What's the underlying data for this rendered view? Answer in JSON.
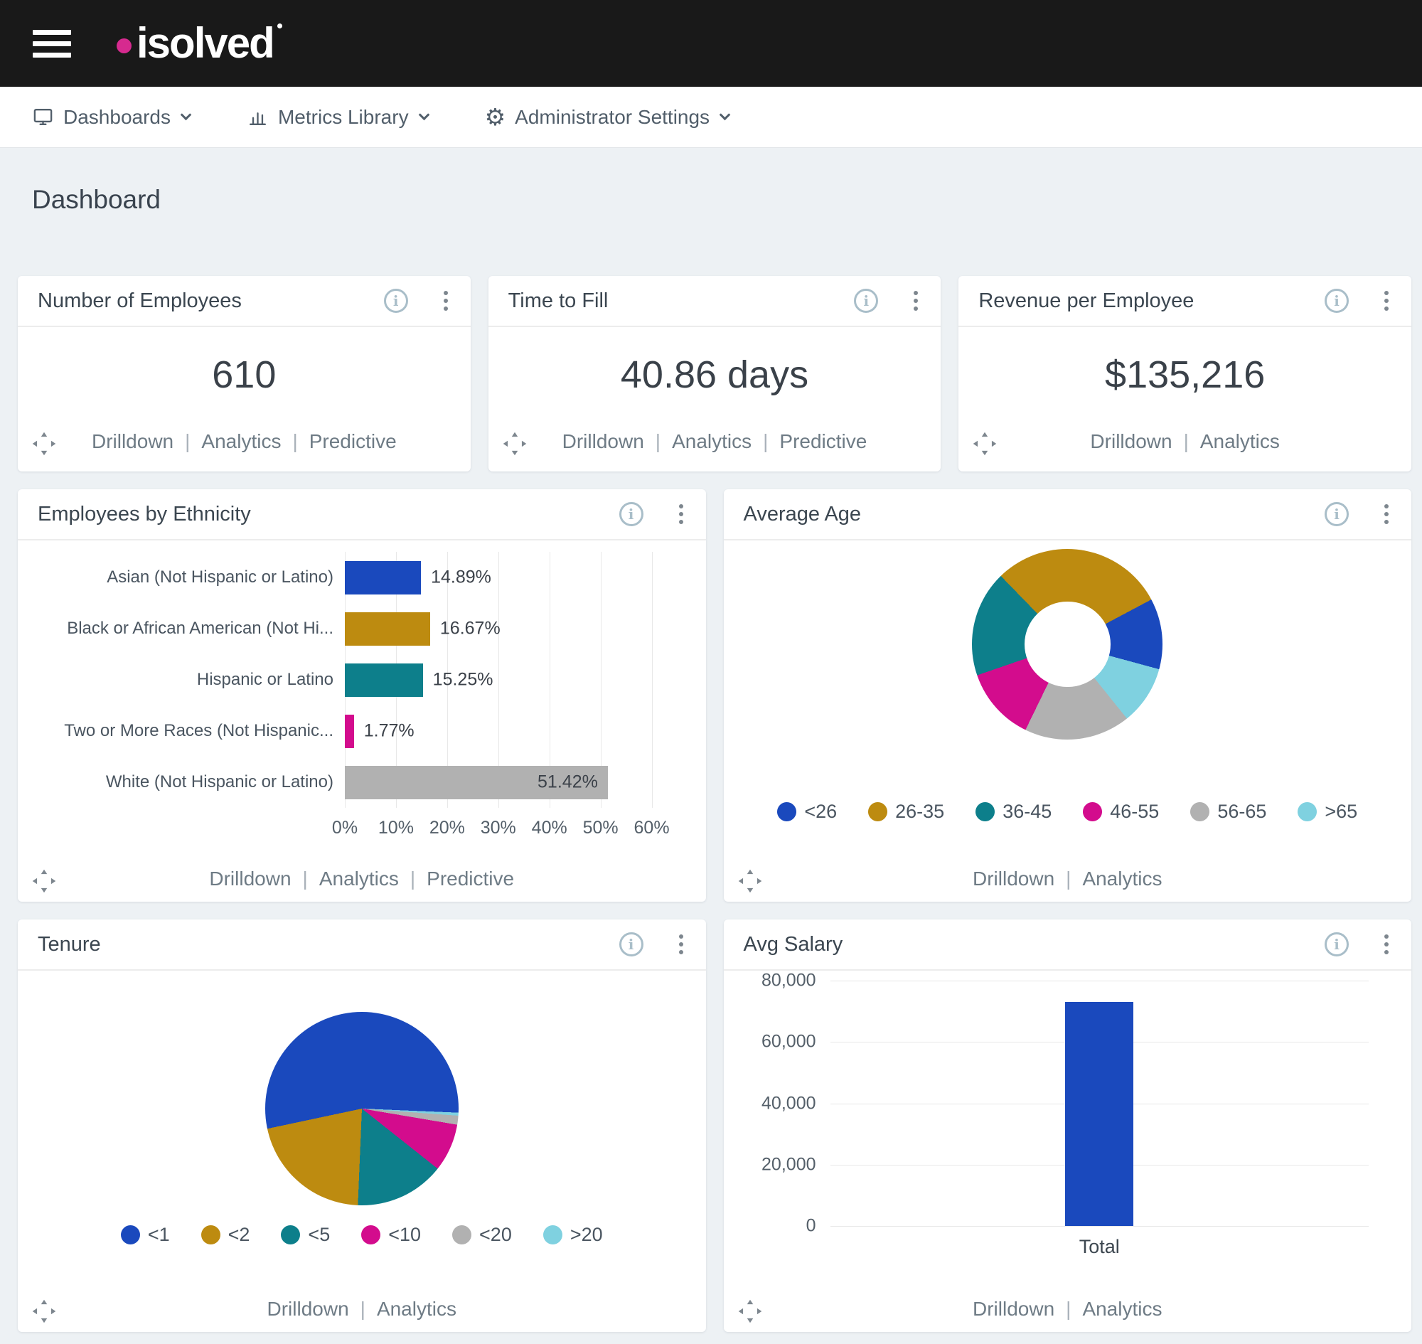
{
  "header": {
    "logo_text": "isolved",
    "logo_dot_color": "#d62a8f",
    "bar_color": "#191919"
  },
  "nav": {
    "items": [
      {
        "label": "Dashboards",
        "icon": "monitor"
      },
      {
        "label": "Metrics Library",
        "icon": "chart"
      },
      {
        "label": "Administrator Settings",
        "icon": "gear"
      }
    ]
  },
  "page": {
    "title": "Dashboard"
  },
  "kpi_cards": [
    {
      "title": "Number of Employees",
      "value": "610",
      "links": [
        "Drilldown",
        "Analytics",
        "Predictive"
      ]
    },
    {
      "title": "Time to Fill",
      "value": "40.86 days",
      "links": [
        "Drilldown",
        "Analytics",
        "Predictive"
      ]
    },
    {
      "title": "Revenue per Employee",
      "value": "$135,216",
      "links": [
        "Drilldown",
        "Analytics"
      ]
    }
  ],
  "palette": {
    "blue": "#1a49bd",
    "gold": "#bd8b10",
    "teal": "#0d7f8b",
    "magenta": "#d30c8d",
    "gray": "#b1b1b1",
    "cyan": "#7fd1e0"
  },
  "chart_data": [
    {
      "type": "bar",
      "orientation": "horizontal",
      "title": "Employees by Ethnicity",
      "categories": [
        "Asian (Not Hispanic or Latino)",
        "Black or African American (Not Hi...",
        "Hispanic or Latino",
        "Two or More Races (Not Hispanic...",
        "White (Not Hispanic or Latino)"
      ],
      "values": [
        14.89,
        16.67,
        15.25,
        1.77,
        51.42
      ],
      "value_labels": [
        "14.89%",
        "16.67%",
        "15.25%",
        "1.77%",
        "51.42%"
      ],
      "bar_colors": [
        "#1a49bd",
        "#bd8b10",
        "#0d7f8b",
        "#d30c8d",
        "#b1b1b1"
      ],
      "xlim": [
        0,
        65
      ],
      "xtick_values": [
        0,
        10,
        20,
        30,
        40,
        50,
        60
      ],
      "xtick_labels": [
        "0%",
        "10%",
        "20%",
        "30%",
        "40%",
        "50%",
        "60%"
      ],
      "grid": "vertical",
      "links": [
        "Drilldown",
        "Analytics",
        "Predictive"
      ]
    },
    {
      "type": "donut",
      "title": "Average Age",
      "slices": [
        {
          "label": "<26",
          "pct": 12,
          "color": "#1a49bd"
        },
        {
          "label": "26-35",
          "pct": 29.5,
          "color": "#bd8b10"
        },
        {
          "label": "36-45",
          "pct": 18,
          "color": "#0d7f8b"
        },
        {
          "label": "46-55",
          "pct": 12.5,
          "color": "#d30c8d"
        },
        {
          "label": "56-65",
          "pct": 18,
          "color": "#b1b1b1"
        },
        {
          "label": ">65",
          "pct": 10,
          "color": "#7fd1e0"
        }
      ],
      "start_deg": 62,
      "direction": "counterclockwise",
      "legend_position": "bottom",
      "links": [
        "Drilldown",
        "Analytics"
      ]
    },
    {
      "type": "pie",
      "title": "Tenure",
      "slices": [
        {
          "label": "<1",
          "pct": 54,
          "color": "#1a49bd"
        },
        {
          "label": "<2",
          "pct": 21,
          "color": "#bd8b10"
        },
        {
          "label": "<5",
          "pct": 15,
          "color": "#0d7f8b"
        },
        {
          "label": "<10",
          "pct": 8,
          "color": "#d30c8d"
        },
        {
          "label": "<20",
          "pct": 1.5,
          "color": "#b1b1b1"
        },
        {
          "label": ">20",
          "pct": 0.5,
          "color": "#7fd1e0"
        }
      ],
      "start_deg": 258,
      "direction": "counterclockwise",
      "legend_position": "bottom",
      "links": [
        "Drilldown",
        "Analytics"
      ]
    },
    {
      "type": "column",
      "title": "Avg Salary",
      "categories": [
        "Total"
      ],
      "values": [
        73000
      ],
      "bar_color": "#1a49bd",
      "ylim": [
        0,
        80000
      ],
      "ytick_values": [
        80000,
        60000,
        40000,
        20000,
        0
      ],
      "ytick_labels": [
        "80,000",
        "60,000",
        "40,000",
        "20,000",
        "0"
      ],
      "grid": "horizontal",
      "links": [
        "Drilldown",
        "Analytics"
      ]
    }
  ]
}
